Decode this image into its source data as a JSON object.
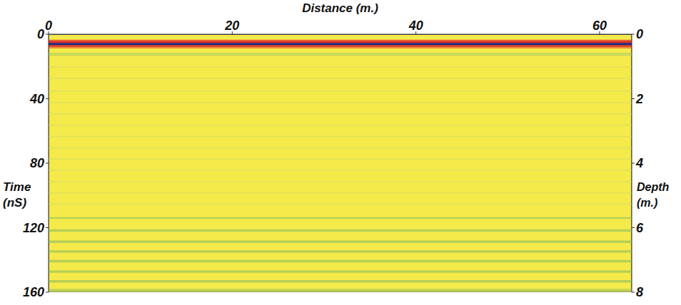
{
  "chart_data": {
    "type": "radargram",
    "x_label": "Distance (m.)",
    "y_label": "Time (nS)",
    "y2_label": "Depth (m.)",
    "color": "#f4ea4a",
    "xlim": [
      0,
      63.5
    ],
    "xticks": [
      0,
      20,
      40,
      60
    ],
    "ylim": [
      0,
      160
    ],
    "yticks": [
      0,
      40,
      80,
      120,
      160
    ],
    "y2lim": [
      0,
      8
    ],
    "y2ticks": [
      0,
      2,
      4,
      6,
      8
    ],
    "reflections": [
      {
        "t0": 3.4,
        "t1": 4.4,
        "color": "#e8602c"
      },
      {
        "t0": 4.4,
        "t1": 5.4,
        "color": "#d42a2a"
      },
      {
        "t0": 5.4,
        "t1": 6.9,
        "color": "#22207e"
      },
      {
        "t0": 6.9,
        "t1": 7.8,
        "color": "#d42a2a"
      },
      {
        "t0": 7.8,
        "t1": 8.8,
        "color": "#f08a3a"
      },
      {
        "t0": 11.5,
        "t1": 13.5,
        "color": "#c9d95a"
      },
      {
        "t0": 20,
        "t1": 20.8,
        "color": "#e3e25a"
      },
      {
        "t0": 27,
        "t1": 27.8,
        "color": "#e3e25a"
      },
      {
        "t0": 35,
        "t1": 35.8,
        "color": "#e3e25a"
      },
      {
        "t0": 42,
        "t1": 42.8,
        "color": "#e3e25a"
      },
      {
        "t0": 49,
        "t1": 49.8,
        "color": "#e3e25a"
      },
      {
        "t0": 56,
        "t1": 56.8,
        "color": "#e3e25a"
      },
      {
        "t0": 63,
        "t1": 63.8,
        "color": "#e3e25a"
      },
      {
        "t0": 70,
        "t1": 70.8,
        "color": "#e3e25a"
      },
      {
        "t0": 77,
        "t1": 77.8,
        "color": "#e3e25a"
      },
      {
        "t0": 84,
        "t1": 84.8,
        "color": "#e3e25a"
      },
      {
        "t0": 91,
        "t1": 91.8,
        "color": "#e3e25a"
      },
      {
        "t0": 98,
        "t1": 98.8,
        "color": "#e3e25a"
      },
      {
        "t0": 105,
        "t1": 105.8,
        "color": "#e3e25a"
      },
      {
        "t0": 113.5,
        "t1": 114.5,
        "color": "#b6cf55"
      },
      {
        "t0": 121,
        "t1": 122.5,
        "color": "#b6cf55"
      },
      {
        "t0": 128,
        "t1": 129.5,
        "color": "#b6cf55"
      },
      {
        "t0": 134,
        "t1": 135.5,
        "color": "#b6cf55"
      },
      {
        "t0": 140,
        "t1": 141.5,
        "color": "#b6cf55"
      },
      {
        "t0": 146.5,
        "t1": 148,
        "color": "#b6cf55"
      },
      {
        "t0": 152.5,
        "t1": 154,
        "color": "#b6cf55"
      },
      {
        "t0": 158,
        "t1": 159.5,
        "color": "#b6cf55"
      }
    ]
  }
}
